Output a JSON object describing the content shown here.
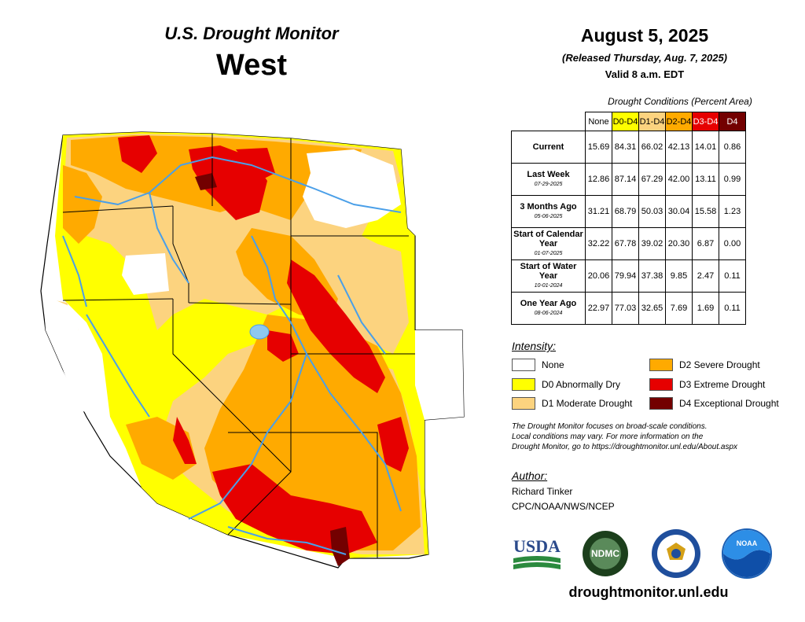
{
  "header": {
    "monitor_title": "U.S. Drought Monitor",
    "region": "West",
    "date": "August 5, 2025",
    "released": "(Released Thursday, Aug. 7, 2025)",
    "valid": "Valid 8 a.m. EDT"
  },
  "table": {
    "caption": "Drought Conditions (Percent Area)",
    "columns": [
      "None",
      "D0-D4",
      "D1-D4",
      "D2-D4",
      "D3-D4",
      "D4"
    ],
    "column_colors": [
      "#ffffff",
      "#ffff00",
      "#fcd37f",
      "#ffaa00",
      "#e60000",
      "#730000"
    ],
    "column_text_colors": [
      "#000000",
      "#000000",
      "#000000",
      "#000000",
      "#ffffff",
      "#ffffff"
    ],
    "rows": [
      {
        "label": "Current",
        "sub": "",
        "values": [
          "15.69",
          "84.31",
          "66.02",
          "42.13",
          "14.01",
          "0.86"
        ]
      },
      {
        "label": "Last Week",
        "sub": "07-29-2025",
        "values": [
          "12.86",
          "87.14",
          "67.29",
          "42.00",
          "13.11",
          "0.99"
        ]
      },
      {
        "label": "3 Months Ago",
        "sub": "05-06-2025",
        "values": [
          "31.21",
          "68.79",
          "50.03",
          "30.04",
          "15.58",
          "1.23"
        ]
      },
      {
        "label": "Start of Calendar Year",
        "sub": "01-07-2025",
        "values": [
          "32.22",
          "67.78",
          "39.02",
          "20.30",
          "6.87",
          "0.00"
        ]
      },
      {
        "label": "Start of Water Year",
        "sub": "10-01-2024",
        "values": [
          "20.06",
          "79.94",
          "37.38",
          "9.85",
          "2.47",
          "0.11"
        ]
      },
      {
        "label": "One Year Ago",
        "sub": "08-06-2024",
        "values": [
          "22.97",
          "77.03",
          "32.65",
          "7.69",
          "1.69",
          "0.11"
        ]
      }
    ]
  },
  "legend": {
    "heading": "Intensity:",
    "items": [
      {
        "label": "None",
        "color": "#ffffff"
      },
      {
        "label": "D0 Abnormally Dry",
        "color": "#ffff00"
      },
      {
        "label": "D1 Moderate Drought",
        "color": "#fcd37f"
      },
      {
        "label": "D2 Severe Drought",
        "color": "#ffaa00"
      },
      {
        "label": "D3 Extreme Drought",
        "color": "#e60000"
      },
      {
        "label": "D4 Exceptional Drought",
        "color": "#730000"
      }
    ]
  },
  "note": {
    "line1": "The Drought Monitor focuses on broad-scale conditions.",
    "line2": "Local conditions may vary. For more information on the",
    "line3": "Drought Monitor, go to https://droughtmonitor.unl.edu/About.aspx"
  },
  "author": {
    "heading": "Author:",
    "name": "Richard Tinker",
    "org": "CPC/NOAA/NWS/NCEP"
  },
  "logos": {
    "usda": "USDA",
    "ndmc": "NDMC",
    "noaa": "NOAA"
  },
  "website": "droughtmonitor.unl.edu",
  "colors": {
    "map_outline": "#000000",
    "rivers": "#4a9fe8"
  }
}
